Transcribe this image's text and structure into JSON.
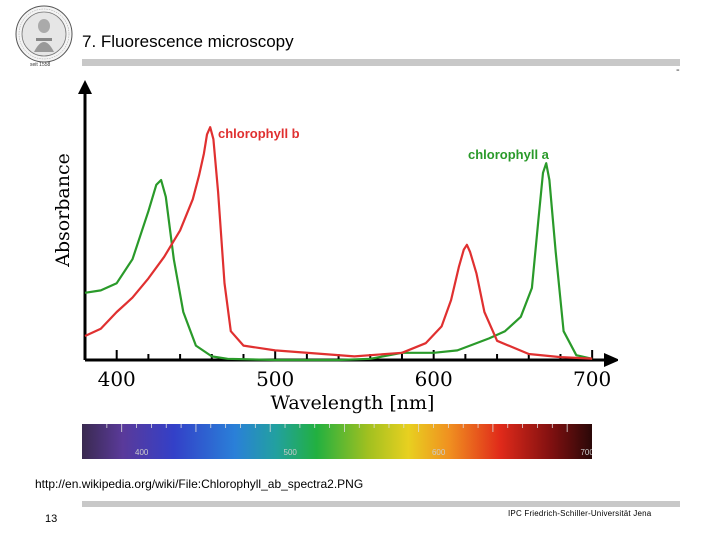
{
  "slide": {
    "title": "7. Fluorescence microscopy",
    "corner_mark": "-",
    "source_url": "http://en.wikipedia.org/wiki/File:Chlorophyll_ab_spectra2.PNG",
    "page_number": "13",
    "institution": "IPC Friedrich-Schiller-Universität Jena",
    "logo_caption": "seit 1558"
  },
  "colors": {
    "chlorophyll_a": "#2a9a2a",
    "chlorophyll_b": "#e03030",
    "rule": "#c8c8c8"
  },
  "chart_data": {
    "type": "line",
    "xlabel": "Wavelength [nm]",
    "ylabel": "Absorbance",
    "xlim": [
      380,
      710
    ],
    "ylim": [
      0,
      1
    ],
    "x_ticks": [
      "400",
      "500",
      "600",
      "700"
    ],
    "x_tick_values": [
      400,
      500,
      600,
      700
    ],
    "series": [
      {
        "name": "chlorophyll a",
        "color": "#2a9a2a",
        "points": [
          [
            380,
            0.28
          ],
          [
            390,
            0.29
          ],
          [
            400,
            0.32
          ],
          [
            410,
            0.42
          ],
          [
            420,
            0.62
          ],
          [
            425,
            0.73
          ],
          [
            428,
            0.75
          ],
          [
            431,
            0.68
          ],
          [
            436,
            0.42
          ],
          [
            442,
            0.2
          ],
          [
            450,
            0.06
          ],
          [
            460,
            0.015
          ],
          [
            470,
            0.005
          ],
          [
            500,
            0.0
          ],
          [
            540,
            0.0
          ],
          [
            560,
            0.005
          ],
          [
            580,
            0.03
          ],
          [
            600,
            0.03
          ],
          [
            615,
            0.04
          ],
          [
            625,
            0.065
          ],
          [
            635,
            0.09
          ],
          [
            645,
            0.12
          ],
          [
            655,
            0.18
          ],
          [
            662,
            0.3
          ],
          [
            666,
            0.58
          ],
          [
            669,
            0.78
          ],
          [
            671,
            0.82
          ],
          [
            673,
            0.75
          ],
          [
            677,
            0.45
          ],
          [
            682,
            0.12
          ],
          [
            690,
            0.02
          ],
          [
            700,
            0.005
          ]
        ]
      },
      {
        "name": "chlorophyll b",
        "color": "#e03030",
        "points": [
          [
            380,
            0.1
          ],
          [
            390,
            0.13
          ],
          [
            400,
            0.2
          ],
          [
            410,
            0.26
          ],
          [
            420,
            0.34
          ],
          [
            430,
            0.43
          ],
          [
            440,
            0.54
          ],
          [
            448,
            0.67
          ],
          [
            452,
            0.77
          ],
          [
            455,
            0.86
          ],
          [
            457,
            0.94
          ],
          [
            459,
            0.97
          ],
          [
            461,
            0.92
          ],
          [
            464,
            0.7
          ],
          [
            468,
            0.32
          ],
          [
            472,
            0.12
          ],
          [
            480,
            0.06
          ],
          [
            500,
            0.04
          ],
          [
            550,
            0.015
          ],
          [
            580,
            0.03
          ],
          [
            595,
            0.07
          ],
          [
            605,
            0.14
          ],
          [
            611,
            0.25
          ],
          [
            616,
            0.39
          ],
          [
            619,
            0.46
          ],
          [
            621,
            0.48
          ],
          [
            623,
            0.45
          ],
          [
            627,
            0.36
          ],
          [
            632,
            0.2
          ],
          [
            640,
            0.08
          ],
          [
            660,
            0.025
          ],
          [
            680,
            0.012
          ],
          [
            700,
            0.006
          ]
        ]
      }
    ],
    "annotations": [
      {
        "text": "chlorophyll b",
        "series": "chlorophyll b"
      },
      {
        "text": "chlorophyll a",
        "series": "chlorophyll a"
      }
    ],
    "spectrum_ticks": [
      "400",
      "500",
      "600",
      "700"
    ]
  }
}
